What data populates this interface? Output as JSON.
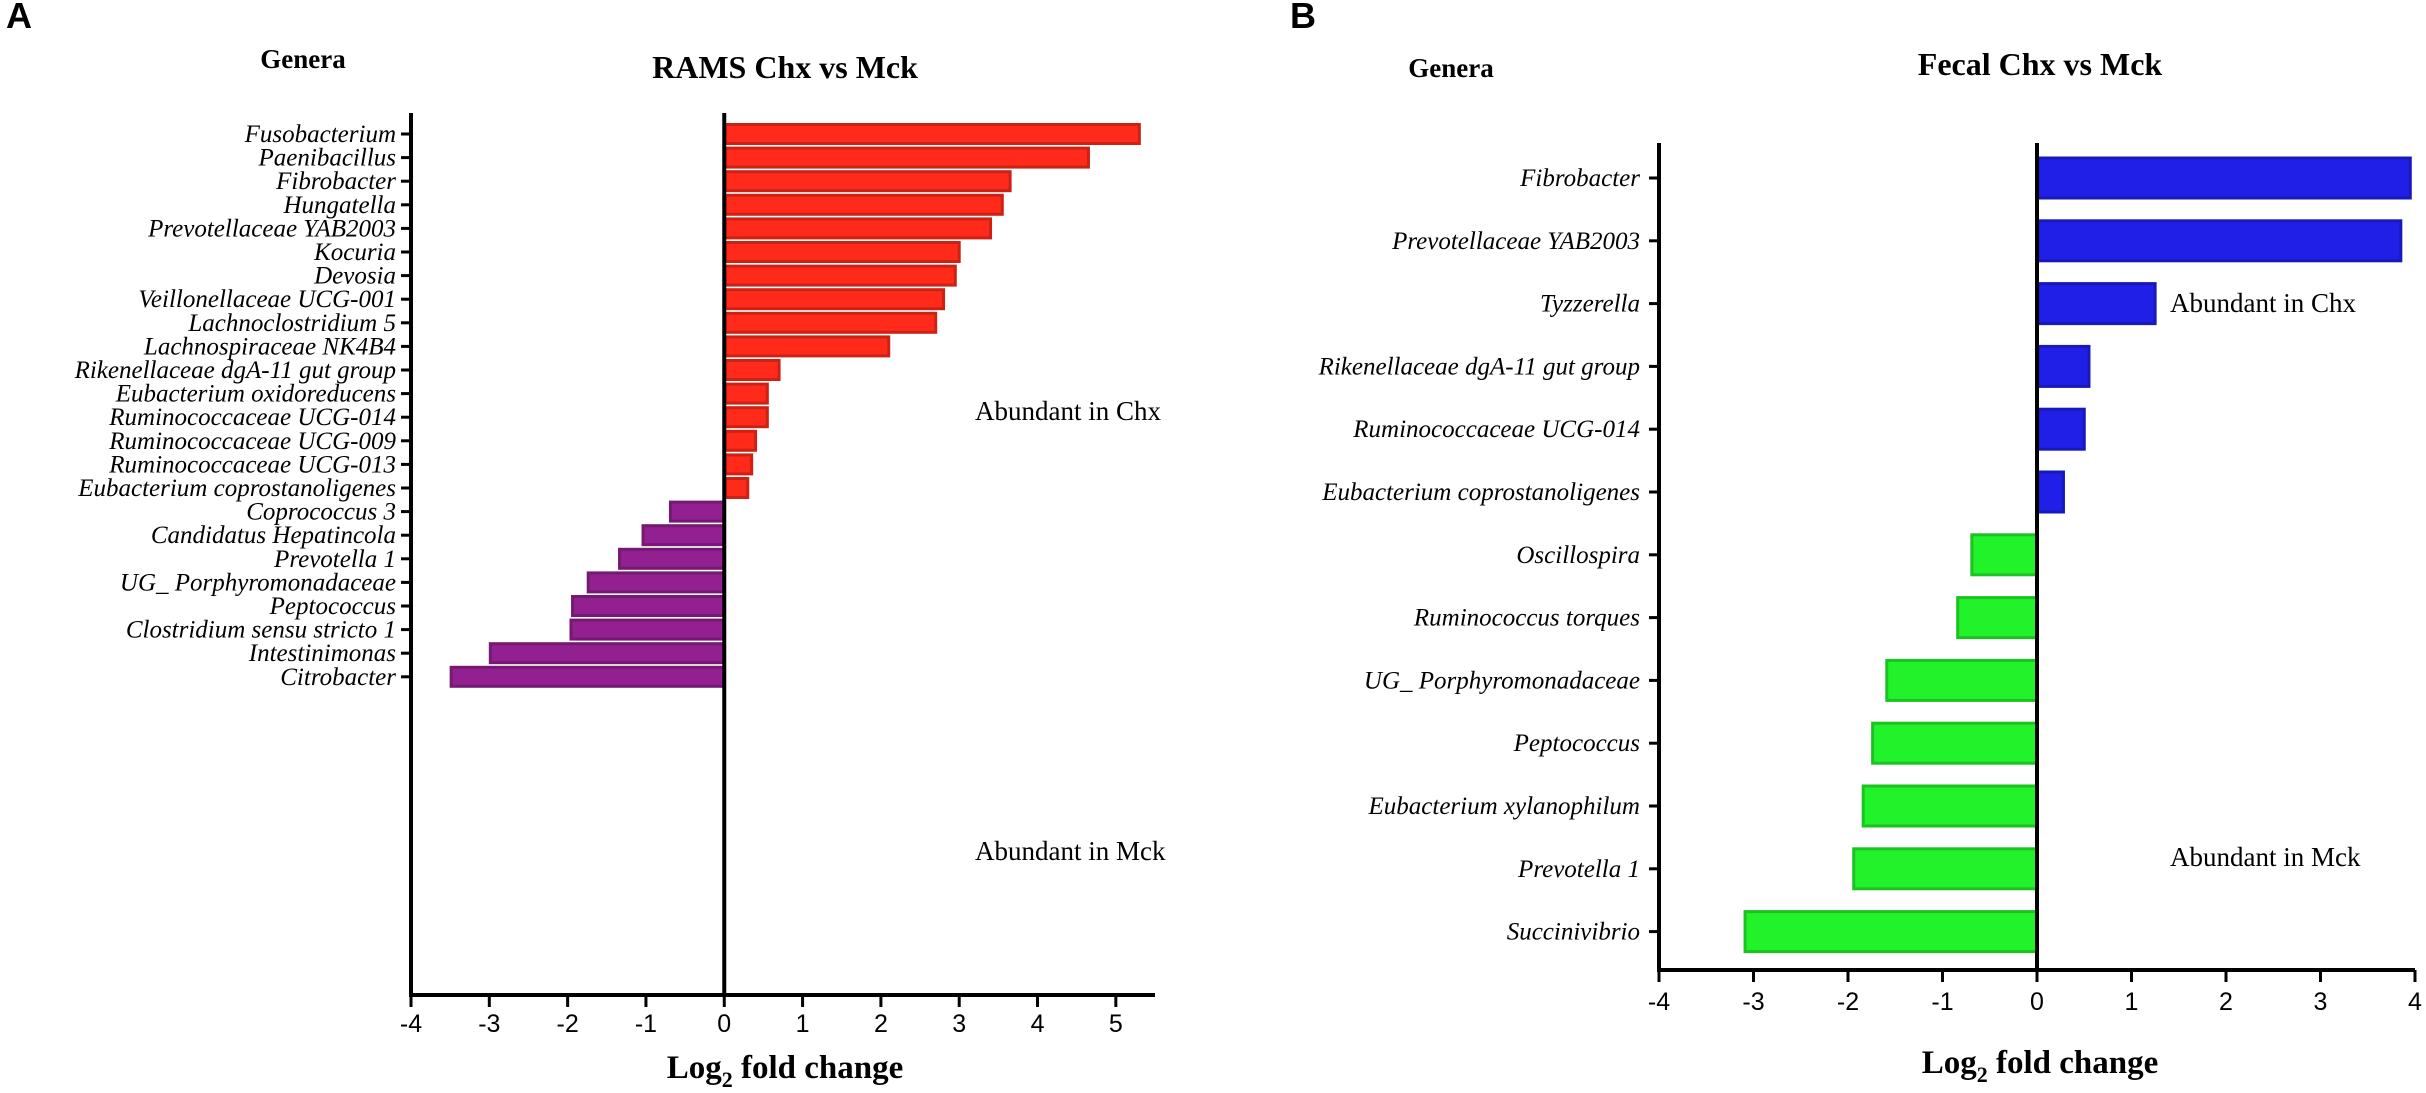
{
  "panel_labels": [
    "A",
    "B"
  ],
  "chart_data": [
    {
      "type": "bar",
      "orientation": "horizontal",
      "panel": "A",
      "title": "RAMS Chx vs Mck",
      "category_header": "Genera",
      "xlabel_main": "Log",
      "xlabel_sub": "2",
      "xlabel_rest": " fold change",
      "xlim": [
        -4,
        5.5
      ],
      "xticks": [
        -4,
        -3,
        -2,
        -1,
        0,
        1,
        2,
        3,
        4,
        5
      ],
      "positive_color": "#ff2a1a",
      "negative_color": "#922090",
      "annotations": [
        "Abundant in Chx",
        "Abundant in Mck"
      ],
      "categories": [
        "Fusobacterium",
        "Paenibacillus",
        "Fibrobacter",
        "Hungatella",
        "Prevotellaceae YAB2003",
        "Kocuria",
        "Devosia",
        "Veillonellaceae UCG-001",
        "Lachnoclostridium 5",
        "Lachnospiraceae NK4B4",
        "Rikenellaceae dgA-11 gut group",
        "Eubacterium oxidoreducens",
        "Ruminococcaceae UCG-014",
        "Ruminococcaceae UCG-009",
        "Ruminococcaceae UCG-013",
        "Eubacterium coprostanoligenes",
        "Coprococcus 3",
        "Candidatus Hepatincola",
        "Prevotella 1",
        "UG_ Porphyromonadaceae",
        "Peptococcus",
        "Clostridium sensu stricto 1",
        "Intestinimonas",
        "Citrobacter"
      ],
      "values": [
        5.3,
        4.65,
        3.65,
        3.55,
        3.4,
        3.0,
        2.95,
        2.8,
        2.7,
        2.1,
        0.7,
        0.55,
        0.55,
        0.4,
        0.35,
        0.3,
        -0.7,
        -1.05,
        -1.35,
        -1.75,
        -1.95,
        -1.97,
        -3.0,
        -3.5
      ]
    },
    {
      "type": "bar",
      "orientation": "horizontal",
      "panel": "B",
      "title": "Fecal Chx vs Mck",
      "category_header": "Genera",
      "xlabel_main": "Log",
      "xlabel_sub": "2",
      "xlabel_rest": " fold change",
      "xlim": [
        -4,
        4
      ],
      "xticks": [
        -4,
        -3,
        -2,
        -1,
        0,
        1,
        2,
        3,
        4
      ],
      "positive_color": "#1f1fe8",
      "negative_color": "#22f22a",
      "annotations": [
        "Abundant in Chx",
        "Abundant in Mck"
      ],
      "categories": [
        "Fibrobacter",
        "Prevotellaceae YAB2003",
        "Tyzzerella",
        "Rikenellaceae dgA-11 gut group",
        "Ruminococcaceae UCG-014",
        "Eubacterium coprostanoligenes",
        "Oscillospira",
        "Ruminococcus torques",
        "UG_ Porphyromonadaceae",
        "Peptococcus",
        "Eubacterium xylanophilum",
        "Prevotella 1",
        "Succinivibrio"
      ],
      "values": [
        3.95,
        3.85,
        1.25,
        0.55,
        0.5,
        0.28,
        -0.7,
        -0.85,
        -1.6,
        -1.75,
        -1.85,
        -1.95,
        -3.1
      ]
    }
  ]
}
